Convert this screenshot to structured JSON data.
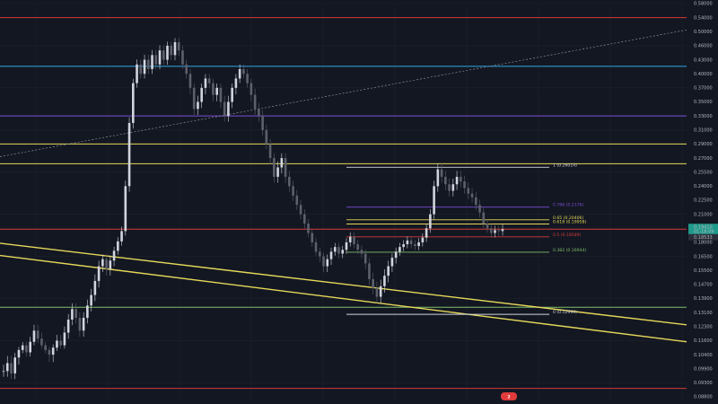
{
  "chart_data": {
    "type": "candlestick",
    "price_axis": {
      "ticks": [
        "0.58000",
        "0.54000",
        "0.50000",
        "0.46000",
        "0.43000",
        "0.40000",
        "0.37000",
        "0.35000",
        "0.33000",
        "0.31000",
        "0.29000",
        "0.27000",
        "0.25500",
        "0.24000",
        "0.22500",
        "0.21000",
        "0.19500",
        "0.18000",
        "0.16500",
        "0.15500",
        "0.14700",
        "0.13900",
        "0.13100",
        "0.12300",
        "0.11600",
        "0.10400",
        "0.09900",
        "0.09300",
        "0.08800"
      ],
      "current_price": "0.19410",
      "current_subtext": "01:18:09",
      "secondary_price": "0.18533"
    },
    "horizontal_levels": [
      {
        "price": 0.54,
        "color": "#d43a3a"
      },
      {
        "price": 0.416,
        "color": "#33a7e6"
      },
      {
        "price": 0.33,
        "color": "#7b4fd6"
      },
      {
        "price": 0.29,
        "color": "#e6d85a"
      },
      {
        "price": 0.264,
        "color": "#e6d85a"
      },
      {
        "price": 0.1941,
        "color": "#d43a3a"
      },
      {
        "price": 0.134,
        "color": "#7fbf6a"
      },
      {
        "price": 0.091,
        "color": "#d43a3a"
      }
    ],
    "fibonacci": {
      "levels": [
        {
          "label": "1 (0.26014)",
          "price": 0.26014,
          "color": "#d1d4dc"
        },
        {
          "label": "0.786 (0.2176)",
          "price": 0.2176,
          "color": "#7b4fd6"
        },
        {
          "label": "0.65 (0.20406)",
          "price": 0.20406,
          "color": "#e6d85a"
        },
        {
          "label": "0.618 (0.19958)",
          "price": 0.19958,
          "color": "#e6d85a"
        },
        {
          "label": "0.5 (0.18589)",
          "price": 0.18589,
          "color": "#d43a3a"
        },
        {
          "label": "0.382 (0.16944)",
          "price": 0.16944,
          "color": "#7fbf6a"
        },
        {
          "label": "0 (0.12999)",
          "price": 0.12999,
          "color": "#d1d4dc"
        }
      ]
    },
    "trend_lines": [
      {
        "color": "#e6d85a",
        "from": [
          0,
          0.179
        ],
        "to": [
          765,
          0.124
        ]
      },
      {
        "color": "#e6d85a",
        "from": [
          0,
          0.166
        ],
        "to": [
          765,
          0.115
        ]
      },
      {
        "color": "#8a8e99",
        "dashed": true,
        "from": [
          0,
          0.272
        ],
        "to": [
          765,
          0.505
        ]
      }
    ],
    "series": {
      "name": "",
      "values": [
        0.098,
        0.101,
        0.097,
        0.103,
        0.108,
        0.112,
        0.106,
        0.115,
        0.121,
        0.117,
        0.112,
        0.108,
        0.104,
        0.11,
        0.116,
        0.112,
        0.12,
        0.127,
        0.133,
        0.128,
        0.121,
        0.128,
        0.135,
        0.141,
        0.149,
        0.158,
        0.163,
        0.156,
        0.162,
        0.171,
        0.181,
        0.192,
        0.24,
        0.32,
        0.38,
        0.42,
        0.4,
        0.43,
        0.41,
        0.44,
        0.42,
        0.45,
        0.43,
        0.46,
        0.44,
        0.47,
        0.45,
        0.42,
        0.4,
        0.37,
        0.34,
        0.35,
        0.37,
        0.39,
        0.38,
        0.36,
        0.37,
        0.35,
        0.33,
        0.35,
        0.37,
        0.39,
        0.41,
        0.4,
        0.38,
        0.36,
        0.34,
        0.33,
        0.31,
        0.29,
        0.27,
        0.25,
        0.26,
        0.27,
        0.25,
        0.24,
        0.23,
        0.22,
        0.21,
        0.2,
        0.19,
        0.18,
        0.17,
        0.165,
        0.158,
        0.163,
        0.17,
        0.175,
        0.168,
        0.172,
        0.18,
        0.186,
        0.178,
        0.172,
        0.168,
        0.16,
        0.15,
        0.145,
        0.14,
        0.146,
        0.152,
        0.158,
        0.164,
        0.17,
        0.175,
        0.178,
        0.182,
        0.178,
        0.176,
        0.18,
        0.185,
        0.195,
        0.21,
        0.24,
        0.258,
        0.25,
        0.242,
        0.235,
        0.242,
        0.25,
        0.245,
        0.238,
        0.232,
        0.228,
        0.22,
        0.212,
        0.2,
        0.195,
        0.19,
        0.193,
        0.192,
        0.194
      ]
    },
    "badge": "2"
  }
}
